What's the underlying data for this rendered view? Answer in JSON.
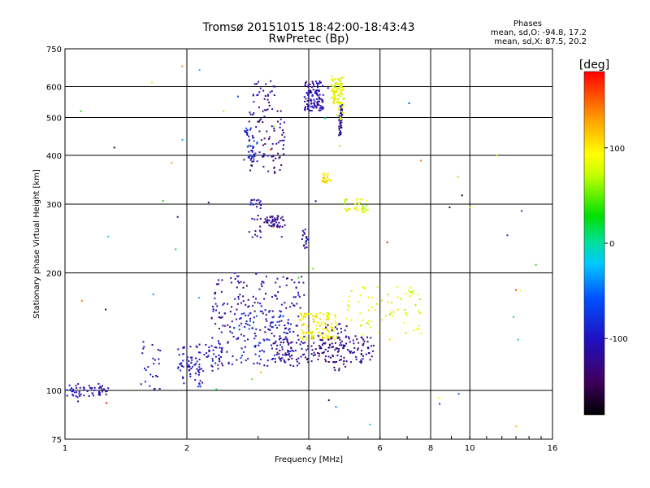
{
  "chart_data": {
    "type": "scatter",
    "title": "Tromsø 20151015 18:42:00-18:43:43",
    "subtitle": "RwPretec (Bp)",
    "xlabel": "Frequency [MHz]",
    "ylabel": "Stationary phase Virtual Height [km]",
    "x_scale": "log",
    "y_scale": "log",
    "xlim": [
      1,
      16
    ],
    "ylim": [
      75,
      750
    ],
    "x_ticks": [
      1,
      2,
      4,
      6,
      8,
      10,
      16
    ],
    "x_tick_labels": [
      "1",
      "2",
      "4",
      "6",
      "8",
      "10",
      "16"
    ],
    "y_ticks": [
      75,
      100,
      200,
      300,
      400,
      500,
      600,
      750
    ],
    "y_tick_labels": [
      "75",
      "100",
      "200",
      "300",
      "400",
      "500",
      "600",
      "750"
    ],
    "grid": true,
    "stats": {
      "heading": "Phases",
      "line1": "mean, sd,O: -94.8, 17.2",
      "line2": "mean, sd,X: 87.5, 20.2"
    },
    "colorbar": {
      "label": "[deg]",
      "min": -180,
      "max": 180,
      "ticks": [
        -100,
        0,
        100
      ],
      "tick_labels": [
        "-100",
        "0",
        "100"
      ]
    },
    "clusters": [
      {
        "x": [
          0.98,
          1.28
        ],
        "y": [
          96,
          104
        ],
        "phase": -110,
        "n": 60
      },
      {
        "x": [
          1.5,
          1.72
        ],
        "y": [
          100,
          135
        ],
        "phase": -105,
        "n": 25
      },
      {
        "x": [
          1.9,
          2.45
        ],
        "y": [
          112,
          133
        ],
        "phase": -100,
        "n": 70
      },
      {
        "x": [
          1.95,
          2.2
        ],
        "y": [
          102,
          120
        ],
        "phase": -95,
        "n": 30
      },
      {
        "x": [
          2.3,
          3.9
        ],
        "y": [
          115,
          200
        ],
        "phase": -115,
        "n": 240
      },
      {
        "x": [
          2.6,
          3.6
        ],
        "y": [
          120,
          160
        ],
        "phase": -80,
        "n": 60
      },
      {
        "x": [
          3.3,
          5.8
        ],
        "y": [
          118,
          138
        ],
        "phase": -120,
        "n": 180
      },
      {
        "x": [
          3.8,
          4.7
        ],
        "y": [
          135,
          158
        ],
        "phase": 95,
        "n": 120
      },
      {
        "x": [
          4.8,
          7.6
        ],
        "y": [
          135,
          185
        ],
        "phase": 85,
        "n": 70
      },
      {
        "x": [
          4.2,
          5.0
        ],
        "y": [
          112,
          150
        ],
        "phase": -130,
        "n": 40
      },
      {
        "x": [
          2.85,
          3.05
        ],
        "y": [
          240,
          310
        ],
        "phase": -110,
        "n": 30
      },
      {
        "x": [
          3.1,
          3.5
        ],
        "y": [
          262,
          280
        ],
        "phase": -125,
        "n": 50
      },
      {
        "x": [
          3.85,
          3.98
        ],
        "y": [
          230,
          260
        ],
        "phase": -115,
        "n": 20
      },
      {
        "x": [
          4.9,
          5.6
        ],
        "y": [
          285,
          310
        ],
        "phase": 85,
        "n": 40
      },
      {
        "x": [
          4.3,
          4.55
        ],
        "y": [
          340,
          360
        ],
        "phase": 100,
        "n": 30
      },
      {
        "x": [
          2.8,
          3.5
        ],
        "y": [
          360,
          520
        ],
        "phase": -125,
        "n": 90
      },
      {
        "x": [
          2.75,
          3.0
        ],
        "y": [
          375,
          470
        ],
        "phase": -80,
        "n": 25
      },
      {
        "x": [
          2.9,
          3.3
        ],
        "y": [
          520,
          620
        ],
        "phase": -115,
        "n": 30
      },
      {
        "x": [
          3.9,
          4.35
        ],
        "y": [
          520,
          620
        ],
        "phase": -110,
        "n": 120
      },
      {
        "x": [
          4.55,
          4.85
        ],
        "y": [
          540,
          640
        ],
        "phase": 90,
        "n": 80
      },
      {
        "x": [
          4.75,
          4.85
        ],
        "y": [
          450,
          540
        ],
        "phase": -115,
        "n": 40
      },
      {
        "x": [
          4.7,
          4.9
        ],
        "y": [
          490,
          620
        ],
        "phase": 80,
        "n": 20
      },
      {
        "x": [
          1.0,
          15.0
        ],
        "y": [
          80,
          700
        ],
        "phase": 0,
        "n": 60
      }
    ]
  }
}
